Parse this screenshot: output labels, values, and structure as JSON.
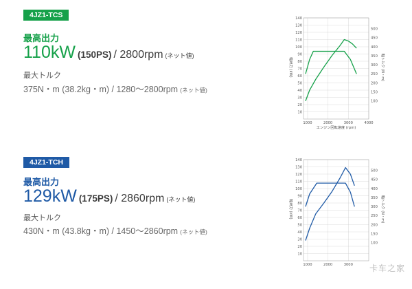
{
  "sections": [
    {
      "badge": "4JZ1-TCS",
      "power_label": "最高出力",
      "power_kw": "110kW",
      "power_ps": "(150PS)",
      "power_rpm": "/ 2800rpm",
      "power_note": "(ネット値)",
      "torque_label": "最大トルク",
      "torque_value": "375N・m (38.2kg・m) / 1280〜2800rpm",
      "torque_note": "(ネット値)",
      "accent_color": "#16a14a",
      "chart_data": {
        "type": "line",
        "xlabel": "エンジン回転速度 (rpm)",
        "ylabel_left": "軸出力 (kW)",
        "ylabel_right": "軸トルク (N・m)",
        "x_ticks": [
          "1000",
          "2000",
          "3000",
          "4000"
        ],
        "y_ticks_left": [
          "10",
          "20",
          "30",
          "40",
          "50",
          "60",
          "70",
          "80",
          "90",
          "100",
          "110",
          "120",
          "130",
          "140"
        ],
        "y_ticks_right": [
          "100",
          "150",
          "200",
          "250",
          "300",
          "350",
          "400",
          "450",
          "500"
        ],
        "xlim": [
          800,
          4000
        ],
        "ylim_left": [
          0,
          140
        ],
        "ylim_right": [
          0,
          560
        ],
        "series": [
          {
            "axis": "left",
            "points": [
              [
                900,
                25
              ],
              [
                1100,
                40
              ],
              [
                1400,
                55
              ],
              [
                1800,
                72
              ],
              [
                2200,
                88
              ],
              [
                2600,
                102
              ],
              [
                2800,
                110
              ],
              [
                3000,
                108
              ],
              [
                3200,
                104
              ],
              [
                3400,
                98
              ]
            ]
          },
          {
            "axis": "right",
            "points": [
              [
                900,
                250
              ],
              [
                1100,
                330
              ],
              [
                1280,
                375
              ],
              [
                1800,
                375
              ],
              [
                2400,
                375
              ],
              [
                2800,
                375
              ],
              [
                3100,
                330
              ],
              [
                3400,
                250
              ]
            ]
          }
        ]
      }
    },
    {
      "badge": "4JZ1-TCH",
      "power_label": "最高出力",
      "power_kw": "129kW",
      "power_ps": "(175PS)",
      "power_rpm": "/ 2860rpm",
      "power_note": "(ネット値)",
      "torque_label": "最大トルク",
      "torque_value": "430N・m (43.8kg・m) / 1450〜2860rpm",
      "torque_note": "(ネット値)",
      "accent_color": "#1f5aa6",
      "chart_data": {
        "type": "line",
        "xlabel": "",
        "ylabel_left": "軸出力 (kW)",
        "ylabel_right": "軸トルク (N・m)",
        "x_ticks": [
          "1000",
          "2000",
          "3000"
        ],
        "y_ticks_left": [
          "10",
          "20",
          "30",
          "40",
          "50",
          "60",
          "70",
          "80",
          "90",
          "100",
          "110",
          "120",
          "130",
          "140"
        ],
        "y_ticks_right": [
          "100",
          "150",
          "200",
          "250",
          "300",
          "350",
          "400",
          "450",
          "500"
        ],
        "xlim": [
          800,
          4000
        ],
        "ylim_left": [
          0,
          140
        ],
        "ylim_right": [
          0,
          560
        ],
        "series": [
          {
            "axis": "left",
            "points": [
              [
                900,
                28
              ],
              [
                1100,
                45
              ],
              [
                1400,
                65
              ],
              [
                1800,
                80
              ],
              [
                2200,
                96
              ],
              [
                2600,
                115
              ],
              [
                2860,
                129
              ],
              [
                3100,
                120
              ],
              [
                3300,
                104
              ]
            ]
          },
          {
            "axis": "right",
            "points": [
              [
                900,
                300
              ],
              [
                1100,
                370
              ],
              [
                1450,
                430
              ],
              [
                2000,
                430
              ],
              [
                2500,
                430
              ],
              [
                2860,
                430
              ],
              [
                3100,
                380
              ],
              [
                3300,
                300
              ]
            ]
          }
        ]
      }
    }
  ],
  "watermark": "卡车之家"
}
